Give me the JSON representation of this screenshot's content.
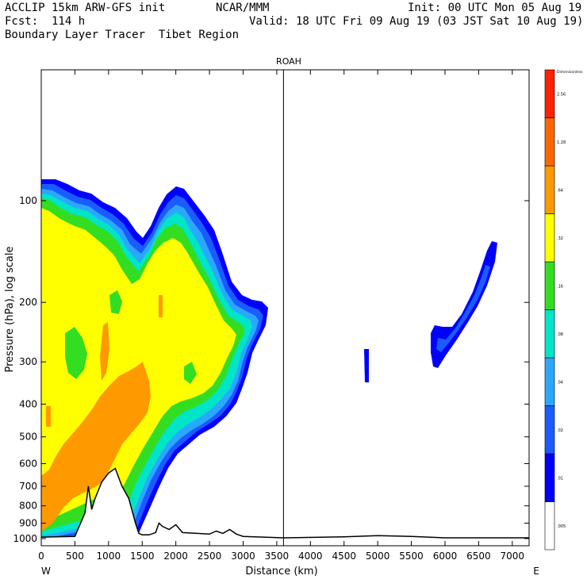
{
  "header": {
    "line1_left": "ACCLIP 15km ARW-GFS init",
    "line1_center": "NCAR/MMM",
    "line1_right": "Init: 00 UTC Mon 05 Aug 19",
    "line2_left": "Fcst:  114 h",
    "line2_right": "Valid: 18 UTC Fri 09 Aug 19 (03 JST Sat 10 Aug 19)",
    "line3_left": "Boundary Layer Tracer  Tibet Region"
  },
  "chart_data": {
    "type": "contour-cross-section",
    "title": "ROAH",
    "xlabel": "Distance (km)",
    "ylabel": "Pressure (hPa), log scale",
    "xlim": [
      0,
      7250
    ],
    "ylim_hpa": [
      1050,
      41
    ],
    "y_scale": "log",
    "x_ticks": [
      "0",
      "500",
      "1000",
      "1500",
      "2000",
      "2500",
      "3000",
      "3500",
      "4000",
      "4500",
      "5000",
      "5500",
      "6000",
      "6500",
      "7000"
    ],
    "y_ticks": [
      "100",
      "200",
      "300",
      "400",
      "500",
      "600",
      "700",
      "800",
      "900",
      "1000"
    ],
    "x_end_labels": {
      "left": "W",
      "right": "E"
    },
    "marker_line_km": 3600,
    "colorbar": {
      "title": "Dimensionless",
      "levels": [
        ".005",
        ".01",
        ".02",
        ".04",
        ".08",
        ".16",
        ".32",
        ".64",
        "1.28",
        "2.56"
      ],
      "colors": [
        "#ffffff",
        "#0000ff",
        "#1a5cff",
        "#2aa8ff",
        "#00e5c8",
        "#33dd22",
        "#ffff00",
        "#ff9900",
        "#ff6600",
        "#ff2200"
      ]
    },
    "terrain_profile": {
      "x_km": [
        0,
        500,
        650,
        700,
        750,
        800,
        900,
        1000,
        1100,
        1200,
        1300,
        1400,
        1450,
        1500,
        1600,
        1700,
        1750,
        1800,
        1900,
        2000,
        2100,
        2500,
        2600,
        2700,
        2800,
        2900,
        3000,
        3600,
        4500,
        5000,
        5500,
        6000,
        7250
      ],
      "p_hpa": [
        990,
        985,
        840,
        700,
        820,
        760,
        680,
        640,
        620,
        700,
        760,
        900,
        965,
        975,
        975,
        960,
        900,
        920,
        940,
        910,
        960,
        970,
        950,
        965,
        940,
        970,
        985,
        995,
        988,
        980,
        985,
        995,
        995
      ]
    },
    "colors": {
      "fill_blue": "#0000ff",
      "fill_orange": "#ff9900",
      "fill_yellow": "#ffff00"
    }
  }
}
